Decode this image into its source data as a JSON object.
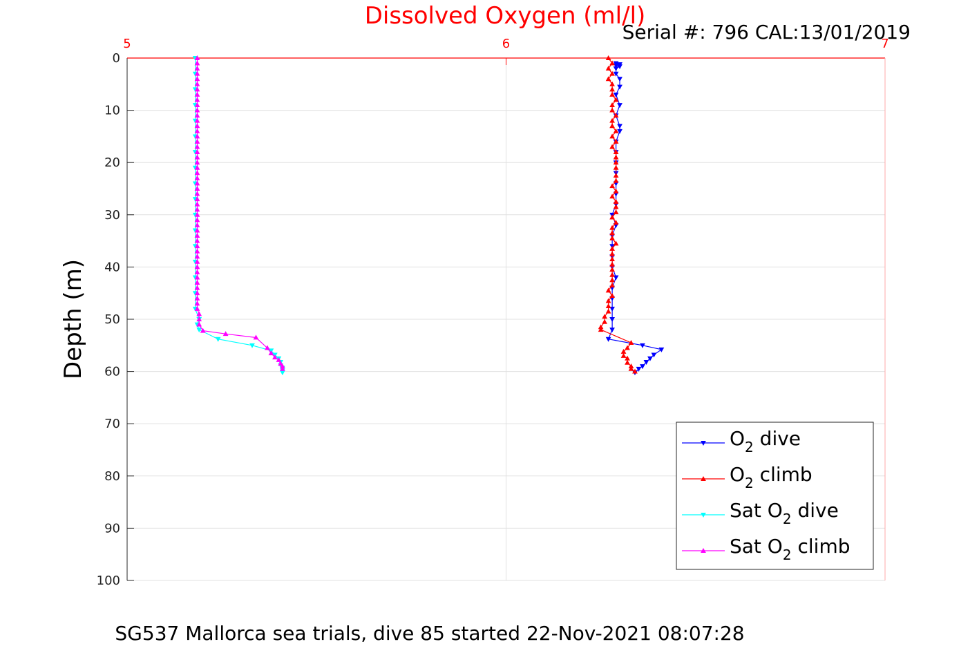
{
  "title": "Dissolved Oxygen (ml/l)",
  "serial": "Serial #: 796  CAL:13/01/2019",
  "caption": "SG537 Mallorca sea trials, dive 85 started 22-Nov-2021 08:07:28",
  "colors": {
    "title": "#ff0000",
    "o2_dive": "#0000ff",
    "o2_climb": "#ff0000",
    "sat_dive": "#00ffff",
    "sat_climb": "#ff00ff",
    "grid": "#e0e0e0"
  },
  "legend": [
    {
      "pre": "O",
      "sub": "2",
      "post": " dive",
      "color": "#0000ff",
      "marker": "down"
    },
    {
      "pre": "O",
      "sub": "2",
      "post": " climb",
      "color": "#ff0000",
      "marker": "up"
    },
    {
      "pre": "Sat O",
      "sub": "2",
      "post": " dive",
      "color": "#00ffff",
      "marker": "down"
    },
    {
      "pre": "Sat O",
      "sub": "2",
      "post": " climb",
      "color": "#ff00ff",
      "marker": "up"
    }
  ],
  "chart_data": {
    "type": "line",
    "ylabel": "Depth (m)",
    "xlim": [
      5,
      7
    ],
    "ylim": [
      0,
      100
    ],
    "y_reversed": true,
    "x_axis_position": "top",
    "xticks": [
      5,
      6,
      7
    ],
    "yticks": [
      0,
      10,
      20,
      30,
      40,
      50,
      60,
      70,
      80,
      90,
      100
    ],
    "grid": true,
    "legend_position": "bottom-right",
    "series": [
      {
        "name": "O2 dive",
        "marker": "down",
        "points": [
          [
            6.29,
            1
          ],
          [
            6.3,
            1.2
          ],
          [
            6.29,
            1.4
          ],
          [
            6.3,
            1.6
          ],
          [
            6.29,
            2
          ],
          [
            6.29,
            3
          ],
          [
            6.3,
            4
          ],
          [
            6.3,
            5.5
          ],
          [
            6.29,
            7
          ],
          [
            6.3,
            9
          ],
          [
            6.29,
            11
          ],
          [
            6.3,
            13
          ],
          [
            6.3,
            14
          ],
          [
            6.29,
            16
          ],
          [
            6.29,
            18
          ],
          [
            6.29,
            20
          ],
          [
            6.29,
            22
          ],
          [
            6.29,
            24
          ],
          [
            6.29,
            26
          ],
          [
            6.29,
            28
          ],
          [
            6.28,
            30
          ],
          [
            6.29,
            32
          ],
          [
            6.28,
            34
          ],
          [
            6.28,
            36
          ],
          [
            6.28,
            38
          ],
          [
            6.28,
            40
          ],
          [
            6.29,
            42
          ],
          [
            6.28,
            44
          ],
          [
            6.28,
            46
          ],
          [
            6.28,
            48
          ],
          [
            6.28,
            50
          ],
          [
            6.28,
            52
          ],
          [
            6.27,
            53.8
          ],
          [
            6.36,
            55
          ],
          [
            6.41,
            55.8
          ],
          [
            6.39,
            56.8
          ],
          [
            6.38,
            57.5
          ],
          [
            6.37,
            58.2
          ],
          [
            6.36,
            59
          ],
          [
            6.35,
            59.5
          ],
          [
            6.34,
            60.2
          ]
        ]
      },
      {
        "name": "O2 climb",
        "marker": "up",
        "points": [
          [
            6.34,
            60
          ],
          [
            6.33,
            59.5
          ],
          [
            6.33,
            59
          ],
          [
            6.32,
            58.3
          ],
          [
            6.32,
            57.5
          ],
          [
            6.31,
            57
          ],
          [
            6.31,
            56.2
          ],
          [
            6.32,
            55.5
          ],
          [
            6.33,
            54.5
          ],
          [
            6.25,
            52
          ],
          [
            6.25,
            51.5
          ],
          [
            6.26,
            50.5
          ],
          [
            6.26,
            49.5
          ],
          [
            6.27,
            48.5
          ],
          [
            6.27,
            47.5
          ],
          [
            6.27,
            46.5
          ],
          [
            6.28,
            45.5
          ],
          [
            6.27,
            44.5
          ],
          [
            6.28,
            43.5
          ],
          [
            6.28,
            42.5
          ],
          [
            6.28,
            41.5
          ],
          [
            6.28,
            40.5
          ],
          [
            6.28,
            39.5
          ],
          [
            6.28,
            38.5
          ],
          [
            6.28,
            37.5
          ],
          [
            6.28,
            36.5
          ],
          [
            6.29,
            35.5
          ],
          [
            6.28,
            34.5
          ],
          [
            6.28,
            33.5
          ],
          [
            6.28,
            32.5
          ],
          [
            6.29,
            31.5
          ],
          [
            6.28,
            30.5
          ],
          [
            6.29,
            29.5
          ],
          [
            6.29,
            28.5
          ],
          [
            6.29,
            27.5
          ],
          [
            6.28,
            26.5
          ],
          [
            6.29,
            25.5
          ],
          [
            6.28,
            24.5
          ],
          [
            6.29,
            23.5
          ],
          [
            6.29,
            22.5
          ],
          [
            6.29,
            21
          ],
          [
            6.29,
            20
          ],
          [
            6.29,
            19
          ],
          [
            6.29,
            18
          ],
          [
            6.28,
            17
          ],
          [
            6.29,
            16
          ],
          [
            6.28,
            15
          ],
          [
            6.29,
            14
          ],
          [
            6.28,
            13
          ],
          [
            6.28,
            12
          ],
          [
            6.29,
            11
          ],
          [
            6.28,
            10
          ],
          [
            6.28,
            9
          ],
          [
            6.29,
            8
          ],
          [
            6.28,
            7
          ],
          [
            6.28,
            6
          ],
          [
            6.28,
            5
          ],
          [
            6.27,
            4
          ],
          [
            6.28,
            3
          ],
          [
            6.27,
            2
          ],
          [
            6.28,
            1
          ],
          [
            6.27,
            0
          ]
        ]
      },
      {
        "name": "Sat O2 dive",
        "marker": "down",
        "points": [
          [
            5.18,
            0
          ],
          [
            5.18,
            3
          ],
          [
            5.18,
            6
          ],
          [
            5.18,
            9
          ],
          [
            5.18,
            12
          ],
          [
            5.18,
            15
          ],
          [
            5.18,
            18
          ],
          [
            5.18,
            21
          ],
          [
            5.18,
            24
          ],
          [
            5.18,
            27
          ],
          [
            5.18,
            30
          ],
          [
            5.18,
            33
          ],
          [
            5.18,
            36
          ],
          [
            5.18,
            39
          ],
          [
            5.18,
            42
          ],
          [
            5.18,
            45
          ],
          [
            5.18,
            48
          ],
          [
            5.19,
            50
          ],
          [
            5.185,
            51
          ],
          [
            5.19,
            52
          ],
          [
            5.24,
            53.8
          ],
          [
            5.33,
            55
          ],
          [
            5.38,
            56
          ],
          [
            5.39,
            56.8
          ],
          [
            5.4,
            57.5
          ],
          [
            5.405,
            58.2
          ],
          [
            5.405,
            58.8
          ],
          [
            5.41,
            59.3
          ],
          [
            5.41,
            59.8
          ],
          [
            5.41,
            60.2
          ]
        ]
      },
      {
        "name": "Sat O2 climb",
        "marker": "up",
        "points": [
          [
            5.41,
            59.5
          ],
          [
            5.41,
            59
          ],
          [
            5.405,
            58.5
          ],
          [
            5.4,
            57.8
          ],
          [
            5.39,
            57.3
          ],
          [
            5.38,
            56.5
          ],
          [
            5.37,
            55.5
          ],
          [
            5.34,
            53.5
          ],
          [
            5.26,
            52.8
          ],
          [
            5.2,
            52.2
          ],
          [
            5.19,
            51
          ],
          [
            5.19,
            50
          ],
          [
            5.19,
            49
          ],
          [
            5.185,
            48
          ],
          [
            5.185,
            47
          ],
          [
            5.185,
            46
          ],
          [
            5.185,
            45
          ],
          [
            5.185,
            44
          ],
          [
            5.185,
            43
          ],
          [
            5.185,
            42
          ],
          [
            5.185,
            41
          ],
          [
            5.185,
            40
          ],
          [
            5.185,
            39
          ],
          [
            5.185,
            38
          ],
          [
            5.185,
            37
          ],
          [
            5.185,
            36
          ],
          [
            5.185,
            35
          ],
          [
            5.185,
            34
          ],
          [
            5.185,
            33
          ],
          [
            5.185,
            32
          ],
          [
            5.185,
            31
          ],
          [
            5.185,
            30
          ],
          [
            5.185,
            29
          ],
          [
            5.185,
            28
          ],
          [
            5.185,
            27
          ],
          [
            5.185,
            26
          ],
          [
            5.185,
            25
          ],
          [
            5.185,
            24
          ],
          [
            5.185,
            23
          ],
          [
            5.185,
            22
          ],
          [
            5.185,
            21
          ],
          [
            5.185,
            20
          ],
          [
            5.185,
            19
          ],
          [
            5.185,
            18
          ],
          [
            5.185,
            17
          ],
          [
            5.185,
            16
          ],
          [
            5.185,
            15
          ],
          [
            5.185,
            14
          ],
          [
            5.185,
            13
          ],
          [
            5.185,
            12
          ],
          [
            5.185,
            11
          ],
          [
            5.185,
            10
          ],
          [
            5.185,
            9
          ],
          [
            5.185,
            8
          ],
          [
            5.185,
            7
          ],
          [
            5.185,
            6
          ],
          [
            5.185,
            5
          ],
          [
            5.185,
            4
          ],
          [
            5.185,
            3
          ],
          [
            5.185,
            2
          ],
          [
            5.185,
            1
          ],
          [
            5.185,
            0
          ]
        ]
      }
    ]
  }
}
